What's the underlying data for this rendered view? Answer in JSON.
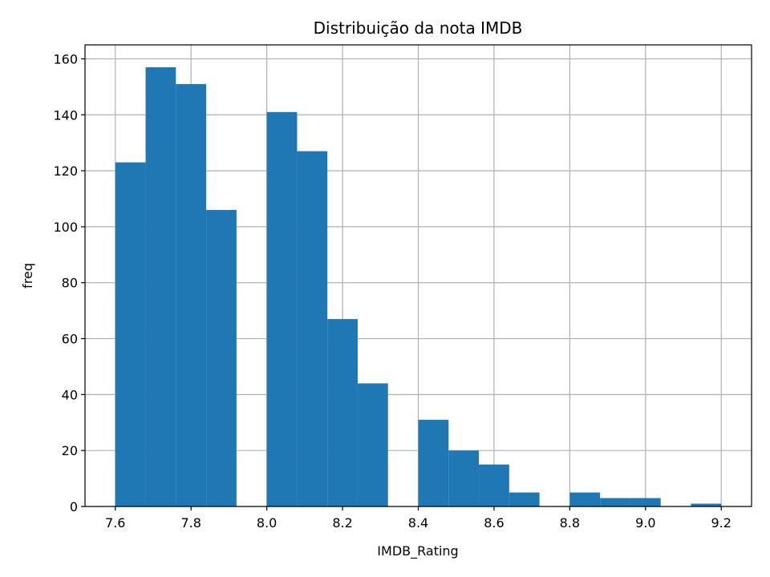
{
  "chart_data": {
    "type": "bar",
    "title": "Distribuição da nota IMDB",
    "xlabel": "IMDB_Rating",
    "ylabel": "freq",
    "bin_start": 7.6,
    "bin_width": 0.08,
    "values": [
      123,
      157,
      151,
      106,
      0,
      141,
      127,
      67,
      44,
      0,
      31,
      20,
      15,
      5,
      0,
      5,
      3,
      3,
      0,
      1
    ],
    "xlim": [
      7.52,
      9.28
    ],
    "ylim": [
      0,
      165
    ],
    "xticks": [
      "7.6",
      "7.8",
      "8.0",
      "8.2",
      "8.4",
      "8.6",
      "8.8",
      "9.0",
      "9.2"
    ],
    "yticks": [
      "0",
      "20",
      "40",
      "60",
      "80",
      "100",
      "120",
      "140",
      "160"
    ],
    "grid": true,
    "bar_color": "#1f77b4"
  }
}
